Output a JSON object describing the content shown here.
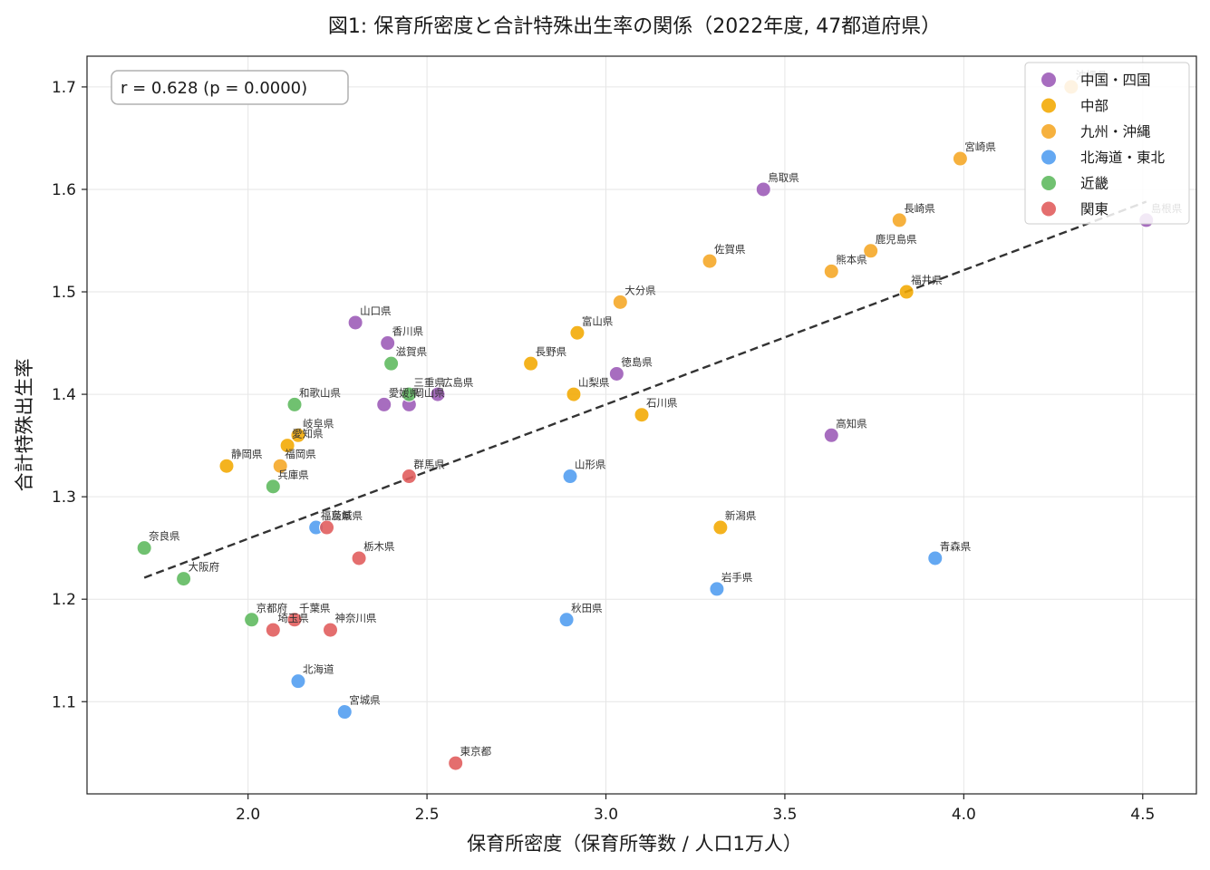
{
  "chart_data": {
    "type": "scatter",
    "title": "図1: 保育所密度と合計特殊出生率の関係（2022年度, 47都道府県）",
    "xlabel": "保育所密度（保育所等数 / 人口1万人）",
    "ylabel": "合計特殊出生率",
    "xlim": [
      1.55,
      4.65
    ],
    "ylim": [
      1.01,
      1.73
    ],
    "xticks": [
      2.0,
      2.5,
      3.0,
      3.5,
      4.0,
      4.5
    ],
    "yticks": [
      1.1,
      1.2,
      1.3,
      1.4,
      1.5,
      1.6,
      1.7
    ],
    "xtick_labels": [
      "2.0",
      "2.5",
      "3.0",
      "3.5",
      "4.0",
      "4.5"
    ],
    "ytick_labels": [
      "1.1",
      "1.2",
      "1.3",
      "1.4",
      "1.5",
      "1.6",
      "1.7"
    ],
    "grid": true,
    "legend_position": "top-right",
    "stats_text": "r = 0.628  (p = 0.0000)",
    "trendline": {
      "x": [
        1.71,
        4.51
      ],
      "y": [
        1.221,
        1.588
      ],
      "style": "dashed",
      "color": "#333333"
    },
    "series": [
      {
        "name": "中国・四国",
        "color": "#9b59b6",
        "points": [
          {
            "label": "鳥取県",
            "x": 3.44,
            "y": 1.6
          },
          {
            "label": "島根県",
            "x": 4.51,
            "y": 1.57
          },
          {
            "label": "山口県",
            "x": 2.3,
            "y": 1.47
          },
          {
            "label": "香川県",
            "x": 2.39,
            "y": 1.45
          },
          {
            "label": "徳島県",
            "x": 3.03,
            "y": 1.42
          },
          {
            "label": "愛媛県",
            "x": 2.38,
            "y": 1.39
          },
          {
            "label": "岡山県",
            "x": 2.45,
            "y": 1.39
          },
          {
            "label": "広島県",
            "x": 2.53,
            "y": 1.4
          },
          {
            "label": "高知県",
            "x": 3.63,
            "y": 1.36
          }
        ]
      },
      {
        "name": "中部",
        "color": "#f2a900",
        "points": [
          {
            "label": "長野県",
            "x": 2.79,
            "y": 1.43
          },
          {
            "label": "富山県",
            "x": 2.92,
            "y": 1.46
          },
          {
            "label": "山梨県",
            "x": 2.91,
            "y": 1.4
          },
          {
            "label": "石川県",
            "x": 3.1,
            "y": 1.38
          },
          {
            "label": "岐阜県",
            "x": 2.14,
            "y": 1.36
          },
          {
            "label": "愛知県",
            "x": 2.11,
            "y": 1.35
          },
          {
            "label": "静岡県",
            "x": 1.94,
            "y": 1.33
          },
          {
            "label": "新潟県",
            "x": 3.32,
            "y": 1.27
          },
          {
            "label": "福井県",
            "x": 3.84,
            "y": 1.5
          }
        ]
      },
      {
        "name": "九州・沖縄",
        "color": "#f5a623",
        "points": [
          {
            "label": "沖縄県",
            "x": 4.3,
            "y": 1.7
          },
          {
            "label": "宮崎県",
            "x": 3.99,
            "y": 1.63
          },
          {
            "label": "長崎県",
            "x": 3.82,
            "y": 1.57
          },
          {
            "label": "鹿児島県",
            "x": 3.74,
            "y": 1.54
          },
          {
            "label": "熊本県",
            "x": 3.63,
            "y": 1.52
          },
          {
            "label": "佐賀県",
            "x": 3.29,
            "y": 1.53
          },
          {
            "label": "大分県",
            "x": 3.04,
            "y": 1.49
          },
          {
            "label": "福岡県",
            "x": 2.09,
            "y": 1.33
          }
        ]
      },
      {
        "name": "北海道・東北",
        "color": "#4f9cf0",
        "points": [
          {
            "label": "青森県",
            "x": 3.92,
            "y": 1.24
          },
          {
            "label": "岩手県",
            "x": 3.31,
            "y": 1.21
          },
          {
            "label": "秋田県",
            "x": 2.89,
            "y": 1.18
          },
          {
            "label": "山形県",
            "x": 2.9,
            "y": 1.32
          },
          {
            "label": "福島県",
            "x": 2.19,
            "y": 1.27
          },
          {
            "label": "北海道",
            "x": 2.14,
            "y": 1.12
          },
          {
            "label": "宮城県",
            "x": 2.27,
            "y": 1.09
          }
        ]
      },
      {
        "name": "近畿",
        "color": "#5cb85c",
        "points": [
          {
            "label": "滋賀県",
            "x": 2.4,
            "y": 1.43
          },
          {
            "label": "三重県",
            "x": 2.45,
            "y": 1.4
          },
          {
            "label": "和歌山県",
            "x": 2.13,
            "y": 1.39
          },
          {
            "label": "兵庫県",
            "x": 2.07,
            "y": 1.31
          },
          {
            "label": "奈良県",
            "x": 1.71,
            "y": 1.25
          },
          {
            "label": "大阪府",
            "x": 1.82,
            "y": 1.22
          },
          {
            "label": "京都府",
            "x": 2.01,
            "y": 1.18
          }
        ]
      },
      {
        "name": "関東",
        "color": "#e05a5a",
        "points": [
          {
            "label": "群馬県",
            "x": 2.45,
            "y": 1.32
          },
          {
            "label": "茨城県",
            "x": 2.22,
            "y": 1.27
          },
          {
            "label": "栃木県",
            "x": 2.31,
            "y": 1.24
          },
          {
            "label": "千葉県",
            "x": 2.13,
            "y": 1.18
          },
          {
            "label": "埼玉県",
            "x": 2.07,
            "y": 1.17
          },
          {
            "label": "神奈川県",
            "x": 2.23,
            "y": 1.17
          },
          {
            "label": "東京都",
            "x": 2.58,
            "y": 1.04
          }
        ]
      }
    ]
  }
}
